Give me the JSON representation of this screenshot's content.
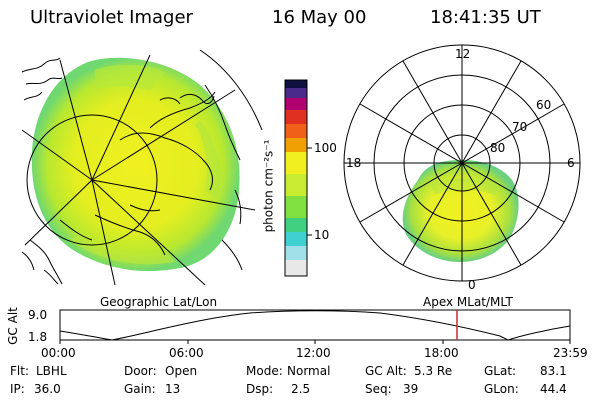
{
  "header": {
    "instrument": "Ultraviolet Imager",
    "date": "16 May 00",
    "time": "18:41:35 UT"
  },
  "colorbar": {
    "unit_label": "photon cm⁻²s⁻¹",
    "ticks": [
      "100",
      "10"
    ],
    "scale": "log",
    "colors": [
      "#e8e8e8",
      "#40d0d0",
      "#80e040",
      "#f0f020",
      "#f0a000",
      "#e03020",
      "#b00070",
      "#4a2a8a",
      "#101040"
    ]
  },
  "left_map": {
    "projection_label": "Geographic Lat/Lon"
  },
  "right_polar": {
    "coordinate_label": "Apex MLat/MLT",
    "mlt_labels": {
      "top": "12",
      "left": "18",
      "right": "6",
      "bottom": "0"
    },
    "mlat_labels": [
      "60",
      "70",
      "80"
    ]
  },
  "altitude_plot": {
    "ylabel": "GC Alt",
    "yticks": [
      "9.0",
      "1.8"
    ],
    "xticks": [
      "00:00",
      "06:00",
      "12:00",
      "18:00",
      "23:59"
    ],
    "current_time_marker": "18:41",
    "marker_color": "#c03030"
  },
  "info": {
    "filter": {
      "label": "Flt:",
      "value": "LBHL"
    },
    "ip": {
      "label": "IP:",
      "value": "36.0"
    },
    "door": {
      "label": "Door:",
      "value": "Open"
    },
    "gain": {
      "label": "Gain:",
      "value": "13"
    },
    "mode": {
      "label": "Mode:",
      "value": "Normal"
    },
    "dsp": {
      "label": "Dsp:",
      "value": "2.5"
    },
    "gc_alt": {
      "label": "GC Alt:",
      "value": "5.3 Re"
    },
    "seq": {
      "label": "Seq:",
      "value": "39"
    },
    "glat": {
      "label": "GLat:",
      "value": "83.1"
    },
    "glon": {
      "label": "GLon:",
      "value": "44.4"
    }
  }
}
